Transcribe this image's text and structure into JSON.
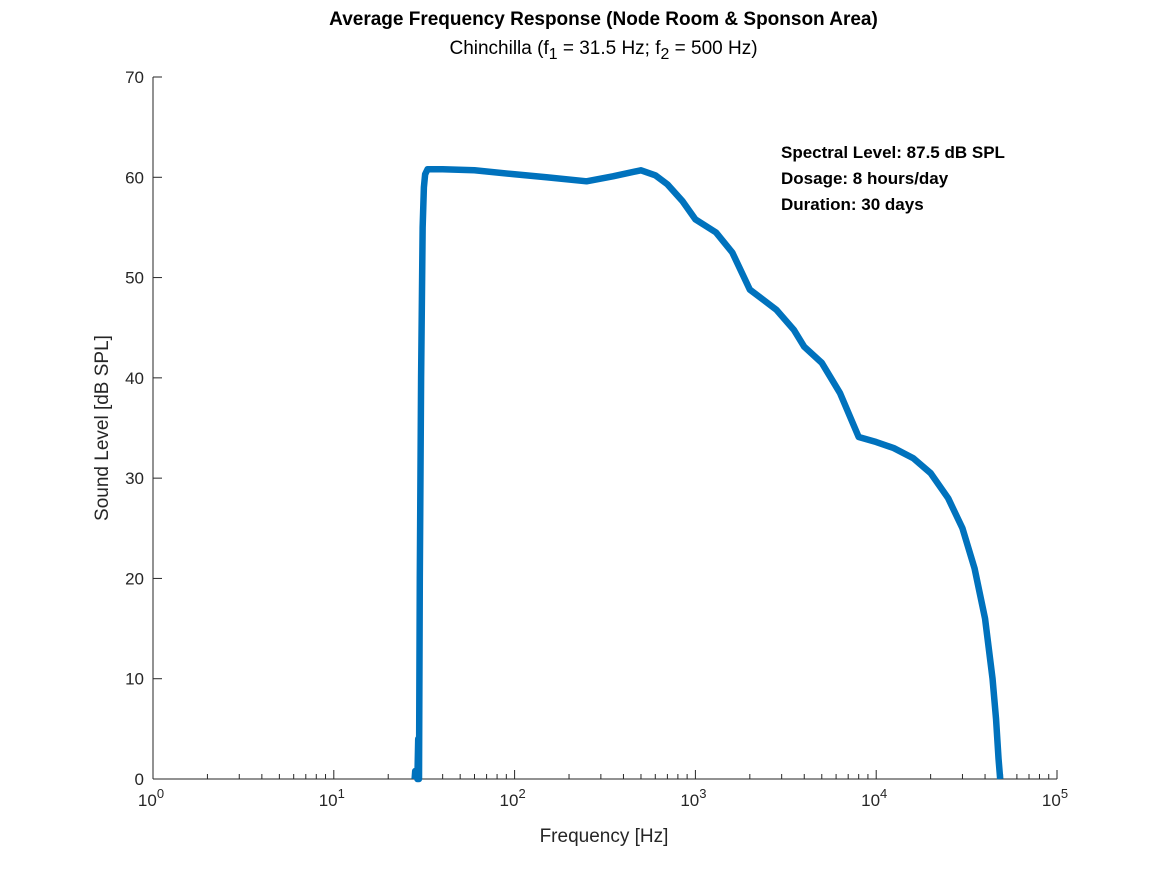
{
  "chart_data": {
    "type": "line",
    "title": "Average Frequency Response (Node Room & Sponson Area)",
    "subtitle": {
      "prefix": "Chinchilla (f",
      "sub1": "1",
      "mid": " = 31.5 Hz; f",
      "sub2": "2",
      "suffix": " = 500 Hz)"
    },
    "xlabel": "Frequency [Hz]",
    "ylabel": "Sound Level [dB SPL]",
    "xscale": "log",
    "xlim": [
      1,
      100000
    ],
    "ylim": [
      0,
      70
    ],
    "x_ticks": [
      {
        "value": 1,
        "base": "10",
        "exp": "0"
      },
      {
        "value": 10,
        "base": "10",
        "exp": "1"
      },
      {
        "value": 100,
        "base": "10",
        "exp": "2"
      },
      {
        "value": 1000,
        "base": "10",
        "exp": "3"
      },
      {
        "value": 10000,
        "base": "10",
        "exp": "4"
      },
      {
        "value": 100000,
        "base": "10",
        "exp": "5"
      }
    ],
    "y_ticks": [
      "0",
      "10",
      "20",
      "30",
      "40",
      "50",
      "60",
      "70"
    ],
    "grid": false,
    "series": [
      {
        "color": "#0072BD",
        "points": [
          [
            28.0,
            0
          ],
          [
            28.2,
            0.8
          ],
          [
            28.6,
            0.8
          ],
          [
            29.0,
            0
          ],
          [
            29.3,
            4
          ],
          [
            29.6,
            0
          ],
          [
            29.9,
            20
          ],
          [
            30.4,
            40
          ],
          [
            31.0,
            55
          ],
          [
            31.5,
            59
          ],
          [
            32.0,
            60.3
          ],
          [
            33.0,
            60.8
          ],
          [
            40,
            60.8
          ],
          [
            60,
            60.7
          ],
          [
            100,
            60.3
          ],
          [
            150,
            60.0
          ],
          [
            250,
            59.6
          ],
          [
            350,
            60.1
          ],
          [
            500,
            60.7
          ],
          [
            600,
            60.2
          ],
          [
            700,
            59.3
          ],
          [
            850,
            57.6
          ],
          [
            1000,
            55.8
          ],
          [
            1300,
            54.5
          ],
          [
            1600,
            52.5
          ],
          [
            2000,
            48.8
          ],
          [
            2800,
            46.8
          ],
          [
            3500,
            44.8
          ],
          [
            4000,
            43.1
          ],
          [
            5000,
            41.5
          ],
          [
            6300,
            38.5
          ],
          [
            8000,
            34.1
          ],
          [
            10000,
            33.6
          ],
          [
            12500,
            33.0
          ],
          [
            16000,
            32.0
          ],
          [
            20000,
            30.5
          ],
          [
            25000,
            28.0
          ],
          [
            30000,
            25.0
          ],
          [
            35000,
            21.0
          ],
          [
            40000,
            16.0
          ],
          [
            44000,
            10.0
          ],
          [
            46000,
            6.0
          ],
          [
            47500,
            2.0
          ],
          [
            48500,
            0
          ]
        ]
      }
    ],
    "annotations": [
      "Spectral Level: 87.5 dB SPL",
      "Dosage: 8 hours/day",
      "Duration: 30 days"
    ]
  }
}
